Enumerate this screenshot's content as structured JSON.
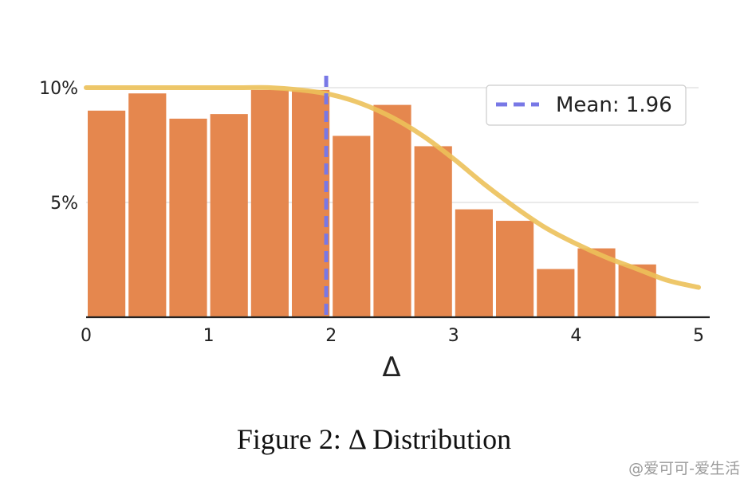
{
  "chart_data": {
    "type": "bar",
    "xlabel": "Δ",
    "xlim": [
      0,
      5
    ],
    "ylim": [
      0,
      10
    ],
    "x_ticks": [
      0,
      1,
      2,
      3,
      4,
      5
    ],
    "y_ticks": [
      5,
      10
    ],
    "y_tick_labels": [
      "5%",
      "10%"
    ],
    "grid": "horizontal",
    "legend_position": "top-right",
    "bin_width": 0.3333,
    "bins": [
      {
        "x_start": 0.0,
        "value": 9.0
      },
      {
        "x_start": 0.3333,
        "value": 9.75
      },
      {
        "x_start": 0.6667,
        "value": 8.65
      },
      {
        "x_start": 1.0,
        "value": 8.85
      },
      {
        "x_start": 1.3333,
        "value": 9.9
      },
      {
        "x_start": 1.6667,
        "value": 9.9
      },
      {
        "x_start": 2.0,
        "value": 7.9
      },
      {
        "x_start": 2.3333,
        "value": 9.25
      },
      {
        "x_start": 2.6667,
        "value": 7.45
      },
      {
        "x_start": 3.0,
        "value": 4.7
      },
      {
        "x_start": 3.3333,
        "value": 4.2
      },
      {
        "x_start": 3.6667,
        "value": 2.1
      },
      {
        "x_start": 4.0,
        "value": 3.0
      },
      {
        "x_start": 4.3333,
        "value": 2.3
      }
    ],
    "curve": {
      "x": [
        0,
        0.25,
        0.5,
        0.75,
        1.0,
        1.25,
        1.5,
        1.75,
        2.0,
        2.25,
        2.5,
        2.75,
        3.0,
        3.25,
        3.5,
        3.75,
        4.0,
        4.25,
        4.5,
        4.75,
        5.0
      ],
      "y": [
        10.0,
        10.0,
        10.0,
        10.0,
        10.0,
        10.0,
        10.0,
        9.9,
        9.7,
        9.3,
        8.7,
        7.9,
        6.9,
        5.8,
        4.8,
        3.9,
        3.2,
        2.6,
        2.1,
        1.6,
        1.3
      ]
    },
    "mean": {
      "label": "Mean: 1.96",
      "value": 1.96
    },
    "colors": {
      "bars": "#E5874E",
      "curve": "#ECC15A",
      "mean_line": "#7878E6",
      "grid": "#DDDDDD",
      "axis": "#222222"
    }
  },
  "caption": "Figure 2: Δ Distribution",
  "watermark": "@爱可可-爱生活"
}
